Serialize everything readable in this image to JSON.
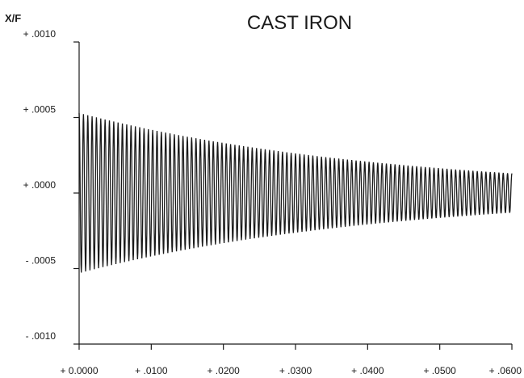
{
  "chart_data": {
    "type": "line",
    "title": "CAST IRON",
    "ylabel": "X/F",
    "xlabel": "",
    "x_tick_labels": [
      "+ 0.0000",
      "+ .0100",
      "+ .0200",
      "+ .0300",
      "+ .0400",
      "+ .0500",
      "+ .0600"
    ],
    "x_ticks": [
      0.0,
      0.01,
      0.02,
      0.03,
      0.04,
      0.05,
      0.06
    ],
    "y_tick_labels": [
      "+ .0010",
      "+ .0005",
      "+ .0000",
      "- .0005",
      "- .0010"
    ],
    "y_ticks": [
      0.001,
      0.0005,
      0.0,
      -0.0005,
      -0.001
    ],
    "xlim": [
      0.0,
      0.06
    ],
    "ylim": [
      -0.001,
      0.001
    ],
    "grid": false,
    "series": [
      {
        "color": "#1a1a1a",
        "signal": "decaying-oscillation",
        "initial_amplitude": 0.00053,
        "final_amplitude": 0.00013,
        "cycles": 100,
        "x_end": 0.06,
        "envelope": {
          "x": [
            0.0,
            0.01,
            0.02,
            0.03,
            0.04,
            0.05,
            0.06
          ],
          "y": [
            0.00053,
            0.00047,
            0.0004,
            0.00033,
            0.00026,
            0.00019,
            0.00013
          ]
        }
      }
    ]
  }
}
